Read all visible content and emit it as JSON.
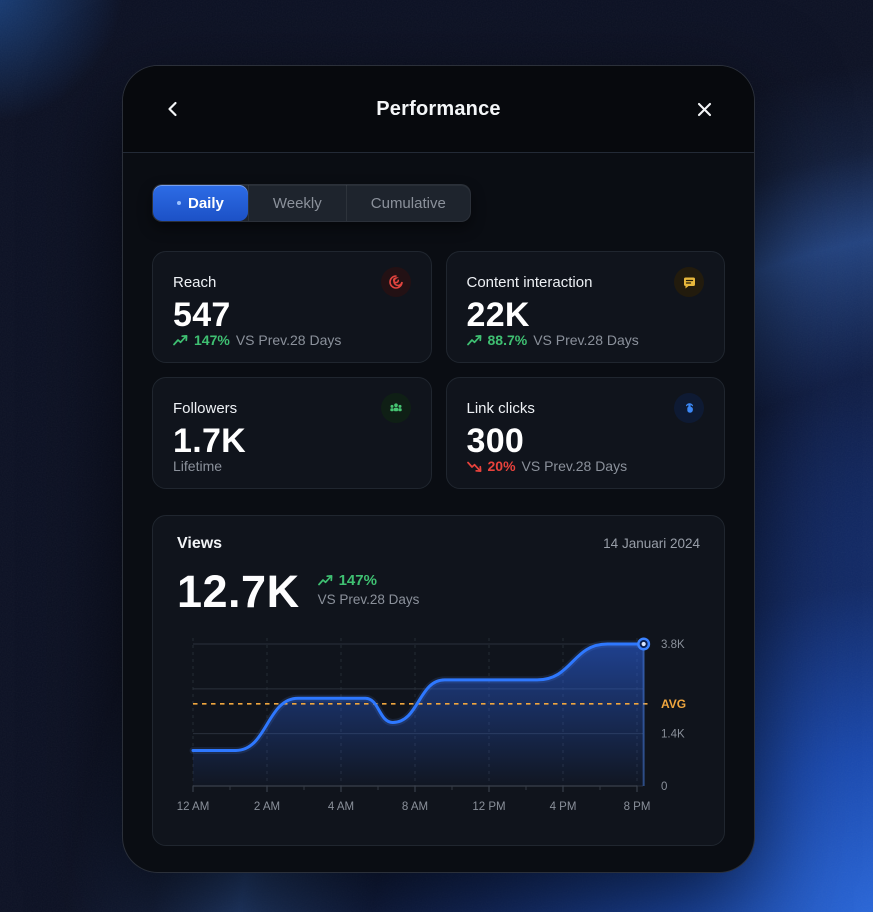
{
  "header": {
    "title": "Performance",
    "back_icon": "chevron-left",
    "close_icon": "x-close"
  },
  "tabs": [
    {
      "label": "Daily",
      "active": true
    },
    {
      "label": "Weekly",
      "active": false
    },
    {
      "label": "Cumulative",
      "active": false
    }
  ],
  "stats": [
    {
      "label": "Reach",
      "value": "547",
      "trend": "up",
      "trend_value": "147%",
      "trend_suffix": "VS Prev.28 Days",
      "icon": "reach-swirl-icon",
      "accent": "#e0443e"
    },
    {
      "label": "Content interaction",
      "value": "22K",
      "trend": "up",
      "trend_value": "88.7%",
      "trend_suffix": "VS Prev.28 Days",
      "icon": "message-icon",
      "accent": "#e7b73c"
    },
    {
      "label": "Followers",
      "value": "1.7K",
      "trend": "none",
      "trend_value": "",
      "trend_suffix": "Lifetime",
      "icon": "people-icon",
      "accent": "#46c472"
    },
    {
      "label": "Link clicks",
      "value": "300",
      "trend": "down",
      "trend_value": "20%",
      "trend_suffix": "VS Prev.28 Days",
      "icon": "tap-finger-icon",
      "accent": "#3b87f5"
    }
  ],
  "views": {
    "title": "Views",
    "date": "14 Januari 2024",
    "value": "12.7K",
    "trend_value": "147%",
    "trend_suffix": "VS Prev.28 Days"
  },
  "chart_data": {
    "type": "area",
    "title": "Views by hour",
    "x_tick_labels": [
      "12 AM",
      "2 AM",
      "4 AM",
      "8 AM",
      "12 PM",
      "4 PM",
      "8 PM"
    ],
    "ymax": 3.8,
    "unit": "K",
    "y_ticks": [
      {
        "value": 3.8,
        "label": "3.8K"
      },
      {
        "value": 2.6,
        "label": ""
      },
      {
        "value": 1.4,
        "label": "1.4K"
      },
      {
        "value": 0,
        "label": "0"
      }
    ],
    "avg_line": {
      "value": 2.2,
      "label": "AVG"
    },
    "series": [
      {
        "name": "Views",
        "points": [
          [
            0,
            0.95
          ],
          [
            0.58,
            0.95
          ],
          [
            1.42,
            2.35
          ],
          [
            2.33,
            2.35
          ],
          [
            2.7,
            1.7
          ],
          [
            3.4,
            2.84
          ],
          [
            4.65,
            2.84
          ],
          [
            5.6,
            3.8
          ],
          [
            6.09,
            3.8
          ]
        ]
      }
    ],
    "legend": false,
    "grid": true,
    "line_color": "#2e78ff",
    "avg_color": "#f0a63e",
    "grid_color": "#2a303b",
    "tick_label_color": "#8a909a"
  },
  "colors": {
    "accent_blue": "#2457cc",
    "green": "#3fc072",
    "red": "#e8423c",
    "amber": "#f0a63e"
  }
}
